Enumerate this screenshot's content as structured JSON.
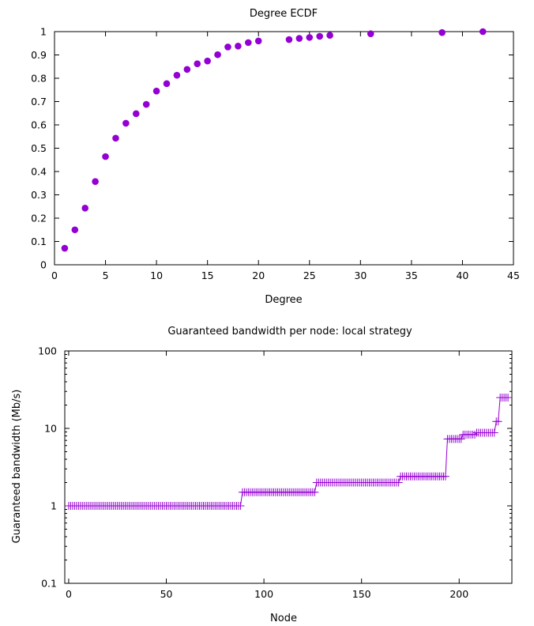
{
  "colors": {
    "series": "#9400d3",
    "axis": "#000000"
  },
  "chart_data": [
    {
      "type": "scatter",
      "title": "Degree ECDF",
      "xlabel": "Degree",
      "ylabel": "",
      "xlim": [
        0,
        45
      ],
      "ylim": [
        0,
        1
      ],
      "xticks": [
        0,
        5,
        10,
        15,
        20,
        25,
        30,
        35,
        40,
        45
      ],
      "xtick_labels": [
        "0",
        "5",
        "10",
        "15",
        "20",
        "25",
        "30",
        "35",
        "40",
        "45"
      ],
      "yticks": [
        0,
        0.1,
        0.2,
        0.3,
        0.4,
        0.5,
        0.6,
        0.7,
        0.8,
        0.9,
        1
      ],
      "ytick_labels": [
        "0",
        "0.1",
        "0.2",
        "0.3",
        "0.4",
        "0.5",
        "0.6",
        "0.7",
        "0.8",
        "0.9",
        "1"
      ],
      "grid": false,
      "marker": "circle",
      "series": [
        {
          "x": [
            1,
            2,
            3,
            4,
            5,
            6,
            7,
            8,
            9,
            10,
            11,
            12,
            13,
            14,
            15,
            16,
            17,
            18,
            19,
            20,
            23,
            24,
            25,
            26,
            27,
            31,
            38,
            42
          ],
          "y": [
            0.071,
            0.15,
            0.243,
            0.357,
            0.464,
            0.543,
            0.607,
            0.648,
            0.688,
            0.745,
            0.777,
            0.813,
            0.838,
            0.862,
            0.874,
            0.901,
            0.934,
            0.938,
            0.953,
            0.96,
            0.966,
            0.971,
            0.975,
            0.98,
            0.984,
            0.991,
            0.996,
            1.0
          ]
        }
      ]
    },
    {
      "type": "line",
      "title": "Guaranteed bandwidth per node: local strategy",
      "xlabel": "Node",
      "ylabel": "Guaranteed bandwidth (Mb/s)",
      "xlim": [
        -2,
        227
      ],
      "ylim": [
        0.1,
        100
      ],
      "yscale": "log",
      "xticks": [
        0,
        50,
        100,
        150,
        200
      ],
      "xtick_labels": [
        "0",
        "50",
        "100",
        "150",
        "200"
      ],
      "yticks": [
        0.1,
        1,
        10,
        100
      ],
      "ytick_labels": [
        "0.1",
        "1",
        "10",
        "100"
      ],
      "grid": false,
      "marker": "plus",
      "series": [
        {
          "segments": [
            {
              "from": 0,
              "to": 88,
              "value": 1.0
            },
            {
              "from": 89,
              "to": 126,
              "value": 1.5
            },
            {
              "from": 127,
              "to": 169,
              "value": 2.0
            },
            {
              "from": 170,
              "to": 193,
              "value": 2.4
            },
            {
              "from": 194,
              "to": 201,
              "value": 7.3
            },
            {
              "from": 202,
              "to": 208,
              "value": 8.3
            },
            {
              "from": 209,
              "to": 218,
              "value": 8.8
            },
            {
              "from": 219,
              "to": 220,
              "value": 12.3
            },
            {
              "from": 221,
              "to": 225,
              "value": 25.0
            }
          ]
        }
      ]
    }
  ]
}
